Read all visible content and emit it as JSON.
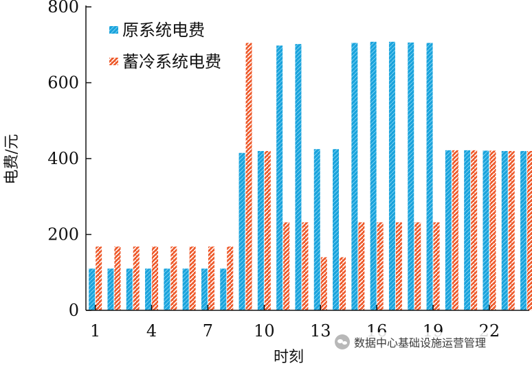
{
  "chart_data": {
    "type": "bar",
    "xlabel": "时刻",
    "ylabel": "电费/元",
    "ylim": [
      0,
      800
    ],
    "yticks": [
      0,
      200,
      400,
      600,
      800
    ],
    "x": [
      1,
      2,
      3,
      4,
      5,
      6,
      7,
      8,
      9,
      10,
      11,
      12,
      13,
      14,
      15,
      16,
      17,
      18,
      19,
      20,
      21,
      22,
      23,
      24
    ],
    "xtick_labels": [
      "1",
      "4",
      "7",
      "10",
      "13",
      "16",
      "19",
      "22"
    ],
    "xtick_values": [
      1,
      4,
      7,
      10,
      13,
      16,
      19,
      22
    ],
    "legend_position": "top-left",
    "series": [
      {
        "name": "原系统电费",
        "color": "#1aa3dc",
        "values": [
          110,
          110,
          110,
          110,
          110,
          110,
          110,
          110,
          415,
          420,
          698,
          702,
          425,
          425,
          705,
          708,
          708,
          706,
          705,
          422,
          422,
          421,
          420,
          420
        ]
      },
      {
        "name": "蓄冷系统电费",
        "color": "#ee5a2b",
        "values": [
          168,
          168,
          168,
          168,
          168,
          168,
          168,
          168,
          705,
          420,
          232,
          232,
          140,
          140,
          232,
          232,
          232,
          232,
          232,
          422,
          422,
          421,
          420,
          420
        ]
      }
    ]
  },
  "watermark": {
    "text": "数据中心基础设施运营管理",
    "icon": "wechat-icon"
  }
}
